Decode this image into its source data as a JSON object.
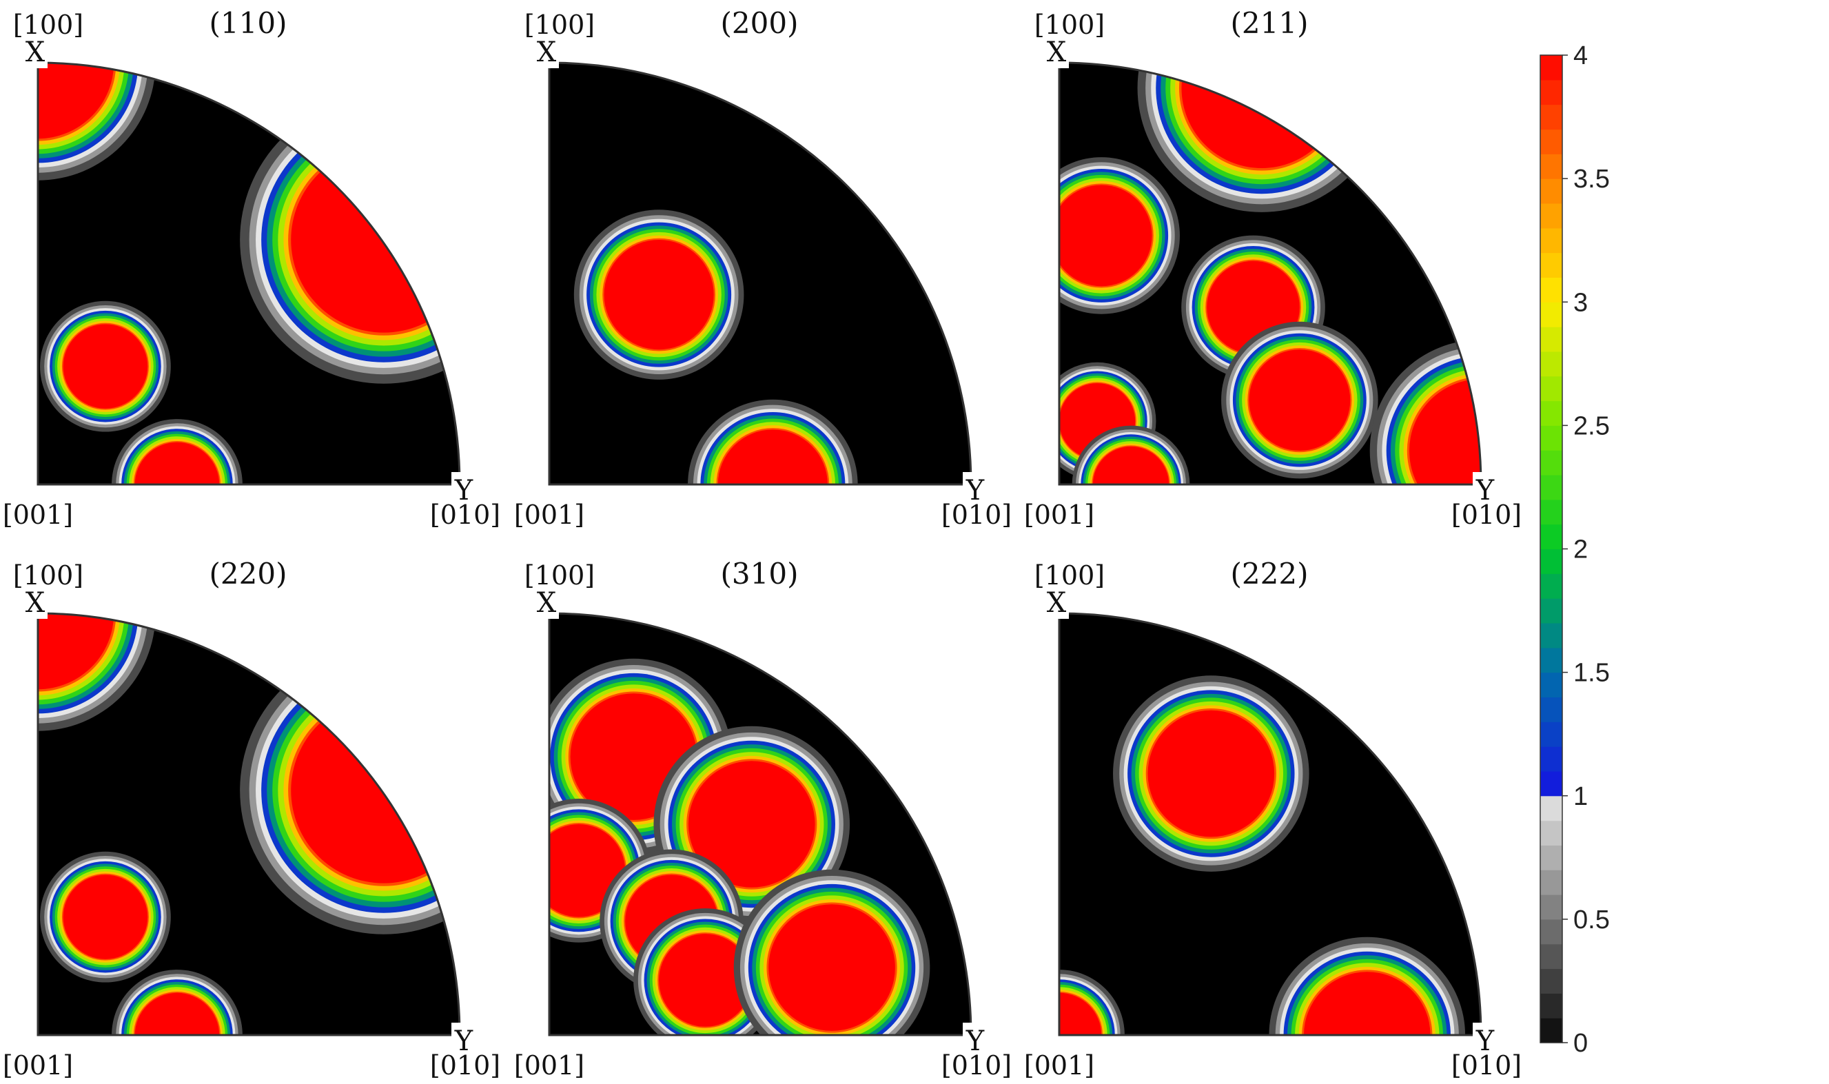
{
  "figure": {
    "panels": [
      {
        "title": "(110)",
        "x_label": "X",
        "y_label": "Y",
        "dir_top": "[100]",
        "dir_origin": "[001]",
        "dir_right": "[010]"
      },
      {
        "title": "(200)",
        "x_label": "X",
        "y_label": "Y",
        "dir_top": "[100]",
        "dir_origin": "[001]",
        "dir_right": "[010]"
      },
      {
        "title": "(211)",
        "x_label": "X",
        "y_label": "Y",
        "dir_top": "[100]",
        "dir_origin": "[001]",
        "dir_right": "[010]"
      },
      {
        "title": "(220)",
        "x_label": "X",
        "y_label": "Y",
        "dir_top": "[100]",
        "dir_origin": "[001]",
        "dir_right": "[010]"
      },
      {
        "title": "(310)",
        "x_label": "X",
        "y_label": "Y",
        "dir_top": "[100]",
        "dir_origin": "[001]",
        "dir_right": "[010]"
      },
      {
        "title": "(222)",
        "x_label": "X",
        "y_label": "Y",
        "dir_top": "[100]",
        "dir_origin": "[001]",
        "dir_right": "[010]"
      }
    ],
    "colorbar": {
      "ticks": [
        "0",
        "0.5",
        "1",
        "1.5",
        "2",
        "2.5",
        "3",
        "3.5",
        "4"
      ],
      "range": [
        0,
        4
      ],
      "levels_gray": 10,
      "levels_color": 30
    }
  },
  "chart_data": {
    "type": "heatmap",
    "subtype": "pole_figure_contour",
    "value_range": [
      0,
      4
    ],
    "panels": [
      {
        "plane": "(110)",
        "poles": [
          {
            "x": 0.0,
            "y": 1.0,
            "r": 0.18,
            "peak": 4
          },
          {
            "x": 0.82,
            "y": 0.58,
            "r": 0.22,
            "peak": 4
          },
          {
            "x": 0.16,
            "y": 0.28,
            "r": 0.1,
            "peak": 4
          },
          {
            "x": 0.33,
            "y": 0.0,
            "r": 0.1,
            "peak": 4
          }
        ]
      },
      {
        "plane": "(200)",
        "poles": [
          {
            "x": 0.26,
            "y": 0.45,
            "r": 0.13,
            "peak": 4
          },
          {
            "x": 0.53,
            "y": 0.0,
            "r": 0.13,
            "peak": 4
          }
        ]
      },
      {
        "plane": "(211)",
        "poles": [
          {
            "x": 0.48,
            "y": 0.94,
            "r": 0.19,
            "peak": 4
          },
          {
            "x": 0.1,
            "y": 0.59,
            "r": 0.12,
            "peak": 4
          },
          {
            "x": 0.46,
            "y": 0.42,
            "r": 0.11,
            "peak": 4
          },
          {
            "x": 0.57,
            "y": 0.2,
            "r": 0.12,
            "peak": 4
          },
          {
            "x": 0.09,
            "y": 0.15,
            "r": 0.09,
            "peak": 4
          },
          {
            "x": 0.17,
            "y": 0.0,
            "r": 0.09,
            "peak": 4
          },
          {
            "x": 1.0,
            "y": 0.08,
            "r": 0.17,
            "peak": 4
          }
        ]
      },
      {
        "plane": "(220)",
        "poles": [
          {
            "x": 0.0,
            "y": 1.0,
            "r": 0.18,
            "peak": 4
          },
          {
            "x": 0.82,
            "y": 0.58,
            "r": 0.22,
            "peak": 4
          },
          {
            "x": 0.16,
            "y": 0.28,
            "r": 0.1,
            "peak": 4
          },
          {
            "x": 0.33,
            "y": 0.0,
            "r": 0.1,
            "peak": 4
          }
        ]
      },
      {
        "plane": "(310)",
        "poles": [
          {
            "x": 0.2,
            "y": 0.66,
            "r": 0.15,
            "peak": 4
          },
          {
            "x": 0.48,
            "y": 0.5,
            "r": 0.15,
            "peak": 4
          },
          {
            "x": 0.07,
            "y": 0.39,
            "r": 0.11,
            "peak": 4
          },
          {
            "x": 0.29,
            "y": 0.27,
            "r": 0.11,
            "peak": 4
          },
          {
            "x": 0.37,
            "y": 0.13,
            "r": 0.11,
            "peak": 4
          },
          {
            "x": 0.67,
            "y": 0.16,
            "r": 0.15,
            "peak": 4
          }
        ]
      },
      {
        "plane": "(222)",
        "poles": [
          {
            "x": 0.36,
            "y": 0.62,
            "r": 0.15,
            "peak": 4
          },
          {
            "x": 0.0,
            "y": 0.0,
            "r": 0.1,
            "peak": 4
          },
          {
            "x": 0.73,
            "y": 0.0,
            "r": 0.15,
            "peak": 4
          }
        ]
      }
    ]
  }
}
